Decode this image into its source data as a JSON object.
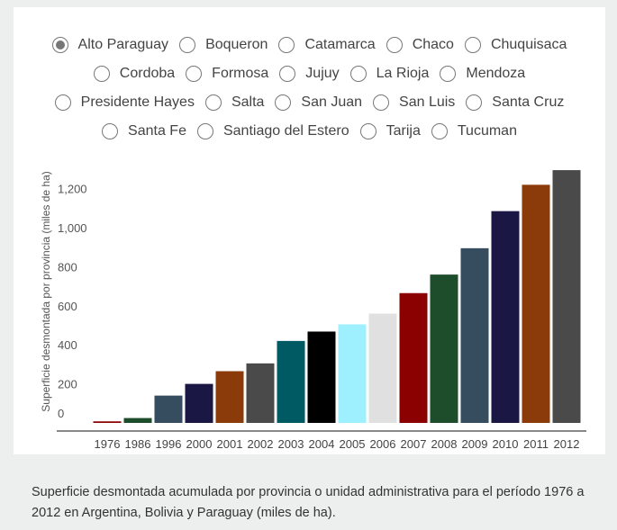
{
  "options": [
    [
      "Alto Paraguay",
      "Boqueron",
      "Catamarca",
      "Chaco",
      "Chuquisaca"
    ],
    [
      "Cordoba",
      "Formosa",
      "Jujuy",
      "La Rioja",
      "Mendoza"
    ],
    [
      "Presidente Hayes",
      "Salta",
      "San Juan",
      "San Luis",
      "Santa Cruz"
    ],
    [
      "Santa Fe",
      "Santiago del Estero",
      "Tarija",
      "Tucuman"
    ]
  ],
  "selected": "Alto Paraguay",
  "chart_data": {
    "type": "bar",
    "ylabel": "Superficie desmontada por provincia (miles de ha)",
    "xlabel": "",
    "ylim": [
      0,
      1300
    ],
    "yticks": [
      0,
      200,
      400,
      600,
      800,
      1000,
      1200
    ],
    "ytick_labels": [
      "0",
      "200",
      "400",
      "600",
      "800",
      "1,000",
      "1,200"
    ],
    "grid": false,
    "legend": "none",
    "categories": [
      "1976",
      "1986",
      "1996",
      "2000",
      "2001",
      "2002",
      "2003",
      "2004",
      "2005",
      "2006",
      "2007",
      "2008",
      "2009",
      "2010",
      "2011",
      "2012"
    ],
    "values": [
      8,
      25,
      140,
      200,
      265,
      305,
      420,
      468,
      505,
      560,
      665,
      760,
      895,
      1085,
      1220,
      1295
    ],
    "colors": [
      "#8b0000",
      "#1e4d2b",
      "#364d60",
      "#1a1744",
      "#8b3a0a",
      "#4a4a4a",
      "#005a63",
      "#000000",
      "#9ef0ff",
      "#e0e0e0",
      "#8b0000",
      "#1e4d2b",
      "#364d60",
      "#1a1744",
      "#8b3a0a",
      "#4a4a4a"
    ]
  },
  "caption": "Superficie desmontada acumulada por provincia o unidad administrativa para el período 1976 a 2012 en Argentina, Bolivia y Paraguay (miles de ha)."
}
